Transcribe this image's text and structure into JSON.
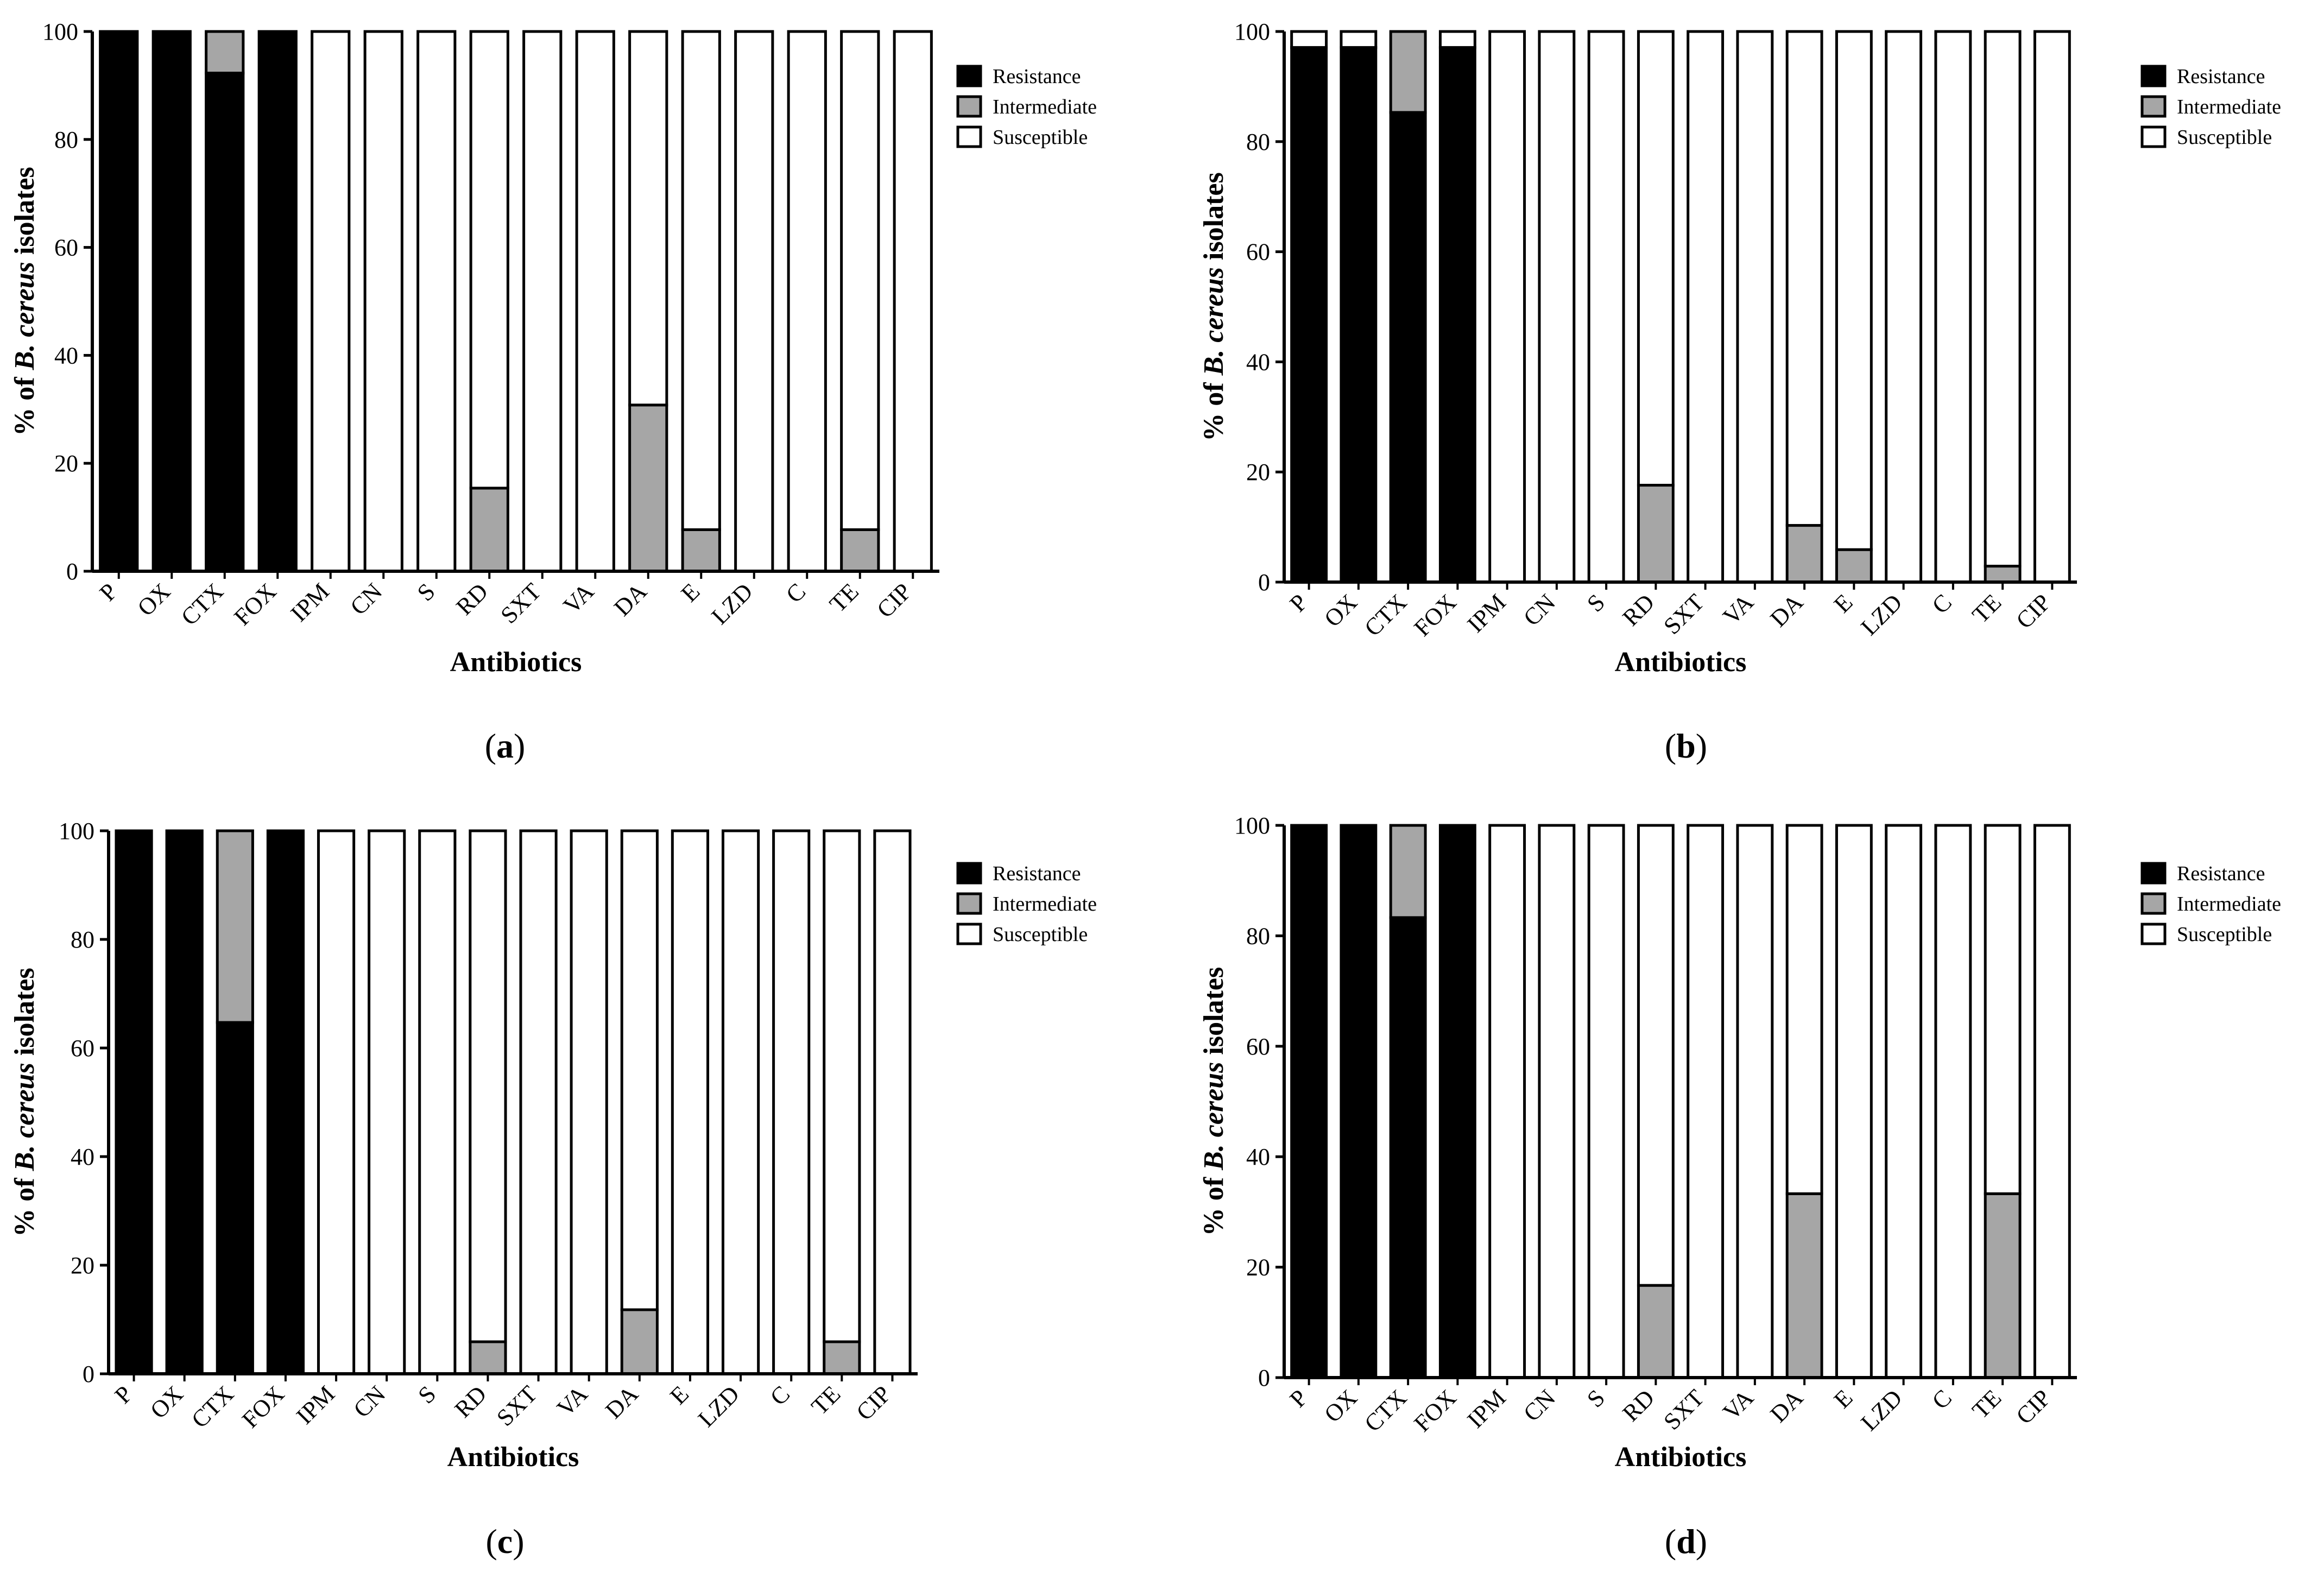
{
  "figure": {
    "legend_labels": [
      "Resistance",
      "Intermediate",
      "Susceptible"
    ],
    "colors": {
      "resistance": "#000000",
      "intermediate": "#a6a6a6",
      "susceptible": "#ffffff",
      "stroke": "#000000"
    }
  },
  "chart_data": [
    {
      "panel": "a",
      "panel_label_parts": [
        "(",
        "a",
        ")"
      ],
      "type": "bar",
      "stacked": true,
      "categories": [
        "P",
        "OX",
        "CTX",
        "FOX",
        "IPM",
        "CN",
        "S",
        "RD",
        "SXT",
        "VA",
        "DA",
        "E",
        "LZD",
        "C",
        "TE",
        "CIP"
      ],
      "series": [
        {
          "name": "Resistance",
          "values": [
            100,
            100,
            92.3,
            100,
            0,
            0,
            0,
            0,
            0,
            0,
            0,
            0,
            0,
            0,
            0,
            0
          ]
        },
        {
          "name": "Intermediate",
          "values": [
            0,
            0,
            7.7,
            0,
            0,
            0,
            0,
            15.4,
            0,
            0,
            30.8,
            7.7,
            0,
            0,
            7.7,
            0
          ]
        },
        {
          "name": "Susceptible",
          "values": [
            0,
            0,
            0,
            0,
            100,
            100,
            100,
            84.6,
            100,
            100,
            69.2,
            92.3,
            100,
            100,
            92.3,
            100
          ]
        }
      ],
      "xlabel": "Antibiotics",
      "ylabel_parts": [
        "% of ",
        "B. cereus",
        " isolates"
      ],
      "yticks": [
        0,
        20,
        40,
        60,
        80,
        100
      ],
      "ylim": [
        0,
        100
      ],
      "legend_position": "top-right"
    },
    {
      "panel": "b",
      "panel_label_parts": [
        "(",
        "b",
        ")"
      ],
      "type": "bar",
      "stacked": true,
      "categories": [
        "P",
        "OX",
        "CTX",
        "FOX",
        "IPM",
        "CN",
        "S",
        "RD",
        "SXT",
        "VA",
        "DA",
        "E",
        "LZD",
        "C",
        "TE",
        "CIP"
      ],
      "series": [
        {
          "name": "Resistance",
          "values": [
            97.1,
            97.1,
            85.3,
            97.1,
            0,
            0,
            0,
            0,
            0,
            0,
            0,
            0,
            0,
            0,
            0,
            0
          ]
        },
        {
          "name": "Intermediate",
          "values": [
            0,
            0,
            14.7,
            0,
            0,
            0,
            0,
            17.6,
            0,
            0,
            10.3,
            5.9,
            0,
            0,
            2.9,
            0
          ]
        },
        {
          "name": "Susceptible",
          "values": [
            2.9,
            2.9,
            0,
            2.9,
            100,
            100,
            100,
            82.4,
            100,
            100,
            89.7,
            94.1,
            100,
            100,
            97.1,
            100
          ]
        }
      ],
      "xlabel": "Antibiotics",
      "ylabel_parts": [
        "% of ",
        "B. cereus",
        " isolates"
      ],
      "yticks": [
        0,
        20,
        40,
        60,
        80,
        100
      ],
      "ylim": [
        0,
        100
      ],
      "legend_position": "top-right"
    },
    {
      "panel": "c",
      "panel_label_parts": [
        "(",
        "c",
        ")"
      ],
      "type": "bar",
      "stacked": true,
      "categories": [
        "P",
        "OX",
        "CTX",
        "FOX",
        "IPM",
        "CN",
        "S",
        "RD",
        "SXT",
        "VA",
        "DA",
        "E",
        "LZD",
        "C",
        "TE",
        "CIP"
      ],
      "series": [
        {
          "name": "Resistance",
          "values": [
            100,
            100,
            64.7,
            100,
            0,
            0,
            0,
            0,
            0,
            0,
            0,
            0,
            0,
            0,
            0,
            0
          ]
        },
        {
          "name": "Intermediate",
          "values": [
            0,
            0,
            35.3,
            0,
            0,
            0,
            0,
            5.9,
            0,
            0,
            11.8,
            0,
            0,
            0,
            5.9,
            0
          ]
        },
        {
          "name": "Susceptible",
          "values": [
            0,
            0,
            0,
            0,
            100,
            100,
            100,
            94.1,
            100,
            100,
            88.2,
            100,
            100,
            100,
            94.1,
            100
          ]
        }
      ],
      "xlabel": "Antibiotics",
      "ylabel_parts": [
        "% of ",
        "B. cereus",
        " isolates"
      ],
      "yticks": [
        0,
        20,
        40,
        60,
        80,
        100
      ],
      "ylim": [
        0,
        100
      ],
      "legend_position": "top-right"
    },
    {
      "panel": "d",
      "panel_label_parts": [
        "(",
        "d",
        ")"
      ],
      "type": "bar",
      "stacked": true,
      "categories": [
        "P",
        "OX",
        "CTX",
        "FOX",
        "IPM",
        "CN",
        "S",
        "RD",
        "SXT",
        "VA",
        "DA",
        "E",
        "LZD",
        "C",
        "TE",
        "CIP"
      ],
      "series": [
        {
          "name": "Resistance",
          "values": [
            100,
            100,
            83.3,
            100,
            0,
            0,
            0,
            0,
            0,
            0,
            0,
            0,
            0,
            0,
            0,
            0
          ]
        },
        {
          "name": "Intermediate",
          "values": [
            0,
            0,
            16.7,
            0,
            0,
            0,
            0,
            16.7,
            0,
            0,
            33.3,
            0,
            0,
            0,
            33.3,
            0
          ]
        },
        {
          "name": "Susceptible",
          "values": [
            0,
            0,
            0,
            0,
            100,
            100,
            100,
            83.3,
            100,
            100,
            66.7,
            100,
            100,
            100,
            66.7,
            100
          ]
        }
      ],
      "xlabel": "Antibiotics",
      "ylabel_parts": [
        "% of ",
        "B. cereus",
        " isolates"
      ],
      "yticks": [
        0,
        20,
        40,
        60,
        80,
        100
      ],
      "ylim": [
        0,
        100
      ],
      "legend_position": "top-right"
    }
  ]
}
